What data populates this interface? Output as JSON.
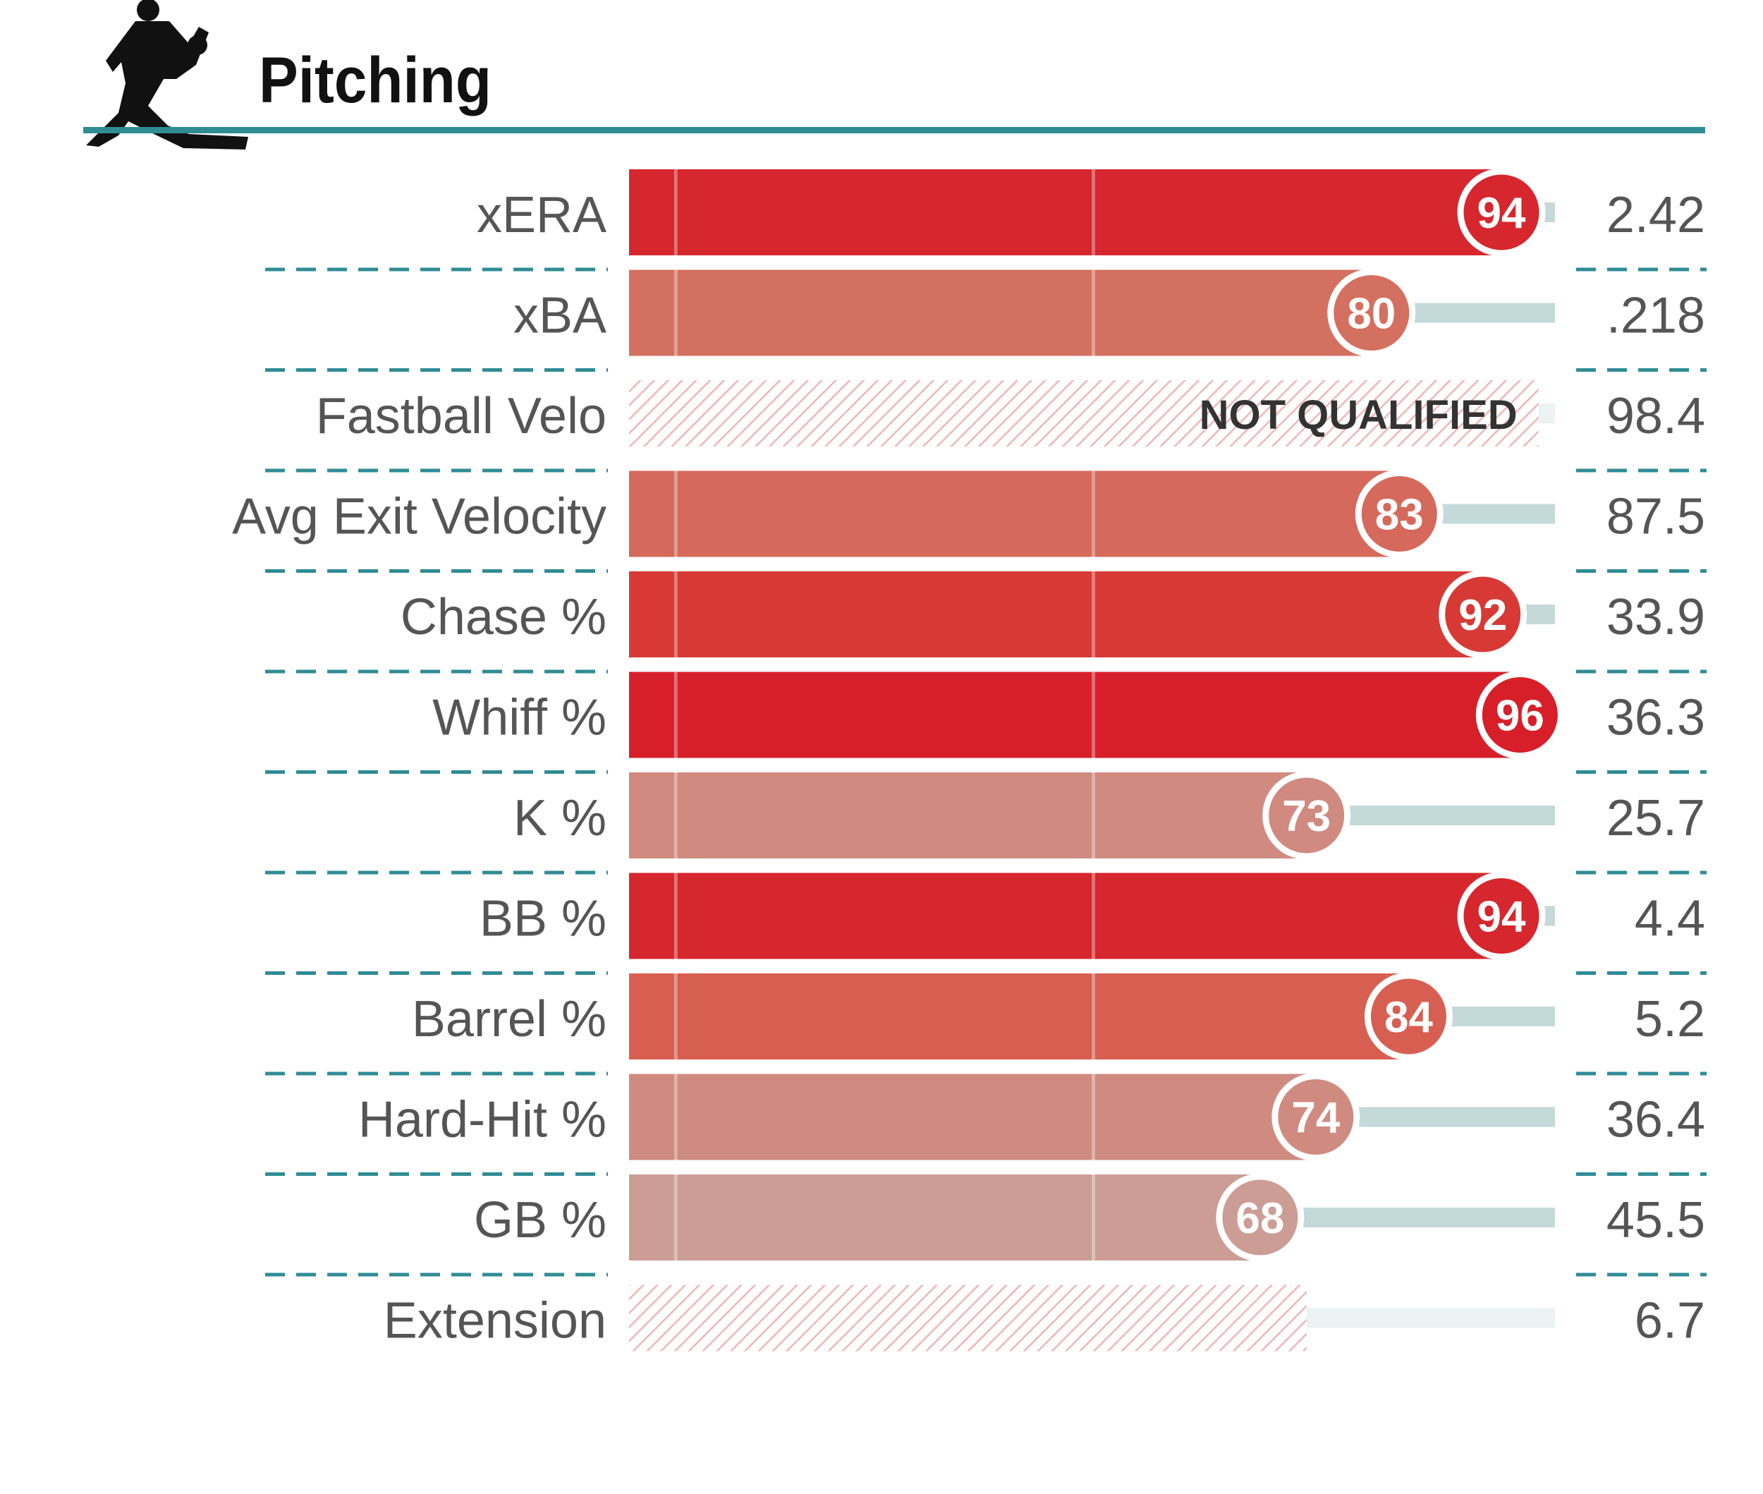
{
  "section": {
    "title": "Pitching",
    "icon": "pitcher-silhouette-icon",
    "accent_color": "#2f8c94"
  },
  "chart_data": {
    "type": "bar",
    "orientation": "horizontal",
    "value_range": [
      0,
      100
    ],
    "reference_lines": [
      5,
      50
    ],
    "grid": false,
    "legend": "none",
    "colors": {
      "pill_background": "#c4d9d9",
      "hatch": "#f0b6b6",
      "row_divider": "#2f8c94",
      "label_text": "#555555",
      "not_qualified_text": "#333333"
    },
    "rows": [
      {
        "metric": "xERA",
        "percentile": 94,
        "value": "2.42",
        "color": "#d5272d",
        "qualified": true
      },
      {
        "metric": "xBA",
        "percentile": 80,
        "value": ".218",
        "color": "#d47060",
        "qualified": true
      },
      {
        "metric": "Fastball Velo",
        "percentile": null,
        "value": "98.4",
        "color": "#f3c2c2",
        "qualified": false,
        "note": "NOT QUALIFIED",
        "approx_percentile": 98
      },
      {
        "metric": "Avg Exit Velocity",
        "percentile": 83,
        "value": "87.5",
        "color": "#d5695b",
        "qualified": true
      },
      {
        "metric": "Chase %",
        "percentile": 92,
        "value": "33.9",
        "color": "#d73a35",
        "qualified": true
      },
      {
        "metric": "Whiff %",
        "percentile": 96,
        "value": "36.3",
        "color": "#d71f29",
        "qualified": true
      },
      {
        "metric": "K %",
        "percentile": 73,
        "value": "25.7",
        "color": "#d08a7f",
        "qualified": true
      },
      {
        "metric": "BB %",
        "percentile": 94,
        "value": "4.4",
        "color": "#d5272d",
        "qualified": true
      },
      {
        "metric": "Barrel %",
        "percentile": 84,
        "value": "5.2",
        "color": "#d75f51",
        "qualified": true
      },
      {
        "metric": "Hard-Hit %",
        "percentile": 74,
        "value": "36.4",
        "color": "#d08b80",
        "qualified": true
      },
      {
        "metric": "GB %",
        "percentile": 68,
        "value": "45.5",
        "color": "#cc9d95",
        "qualified": true
      },
      {
        "metric": "Extension",
        "percentile": null,
        "value": "6.7",
        "color": "#f3c2c2",
        "qualified": false,
        "note": "",
        "approx_percentile": 73
      }
    ]
  }
}
